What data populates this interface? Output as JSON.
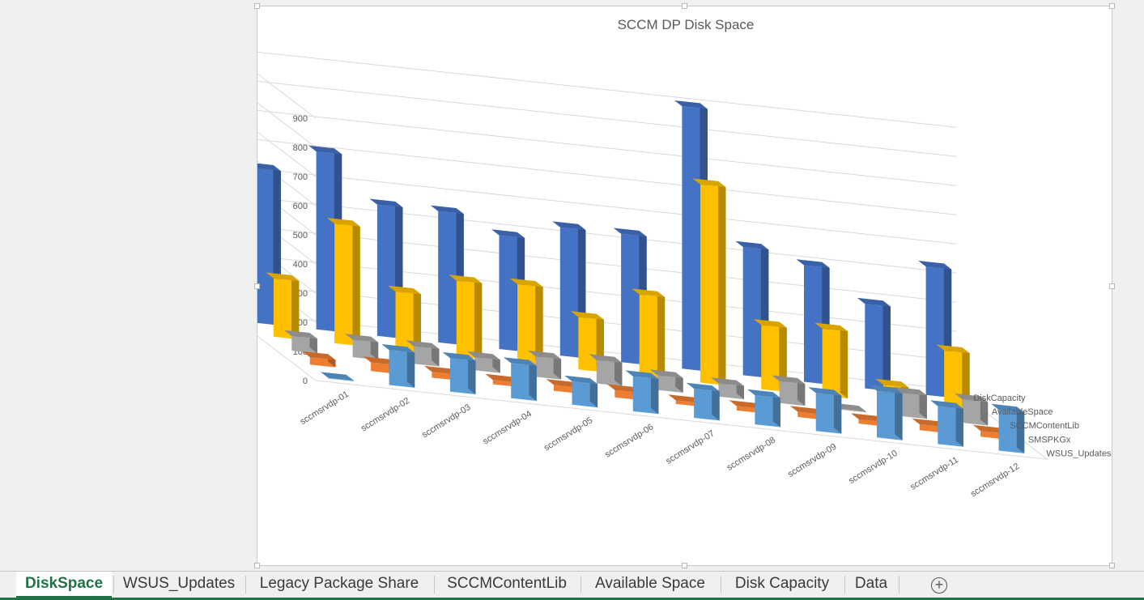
{
  "tabs": [
    {
      "label": "DiskSpace",
      "active": true
    },
    {
      "label": "WSUS_Updates",
      "active": false
    },
    {
      "label": "Legacy Package Share",
      "active": false
    },
    {
      "label": "SCCMContentLib",
      "active": false
    },
    {
      "label": "Available Space",
      "active": false
    },
    {
      "label": "Disk Capacity",
      "active": false
    },
    {
      "label": "Data",
      "active": false
    }
  ],
  "add_sheet_glyph": "+",
  "chart_data": {
    "type": "bar",
    "title": "SCCM DP Disk Space",
    "ylim": [
      0,
      900
    ],
    "yticks": [
      0,
      100,
      200,
      300,
      400,
      500,
      600,
      700,
      800,
      900
    ],
    "grid": true,
    "categories": [
      "sccmsrvdp-01",
      "sccmsrvdp-02",
      "sccmsrvdp-03",
      "sccmsrvdp-04",
      "sccmsrvdp-05",
      "sccmsrvdp-06",
      "sccmsrvdp-07",
      "sccmsrvdp-08",
      "sccmsrvdp-09",
      "sccmsrvdp-10",
      "sccmsrvdp-11",
      "sccmsrvdp-12"
    ],
    "series": [
      {
        "name": "WSUS_Updates",
        "color": "#5b9bd5",
        "values": [
          2,
          120,
          115,
          120,
          80,
          120,
          100,
          100,
          130,
          160,
          130,
          140
        ]
      },
      {
        "name": "SMSPKGx",
        "color": "#ed7d31",
        "values": [
          25,
          30,
          20,
          15,
          20,
          25,
          12,
          15,
          18,
          15,
          20,
          20
        ]
      },
      {
        "name": "SCCMContentLib",
        "color": "#a5a5a5",
        "values": [
          50,
          60,
          60,
          45,
          70,
          80,
          50,
          45,
          75,
          3,
          80,
          80
        ]
      },
      {
        "name": "AvailableSpace",
        "color": "#ffc000",
        "values": [
          200,
          410,
          200,
          260,
          270,
          180,
          280,
          680,
          220,
          230,
          60,
          200
        ]
      },
      {
        "name": "DiskCapacity",
        "color": "#4472c4",
        "values": [
          530,
          610,
          450,
          450,
          390,
          440,
          440,
          900,
          440,
          400,
          290,
          440
        ]
      }
    ]
  }
}
